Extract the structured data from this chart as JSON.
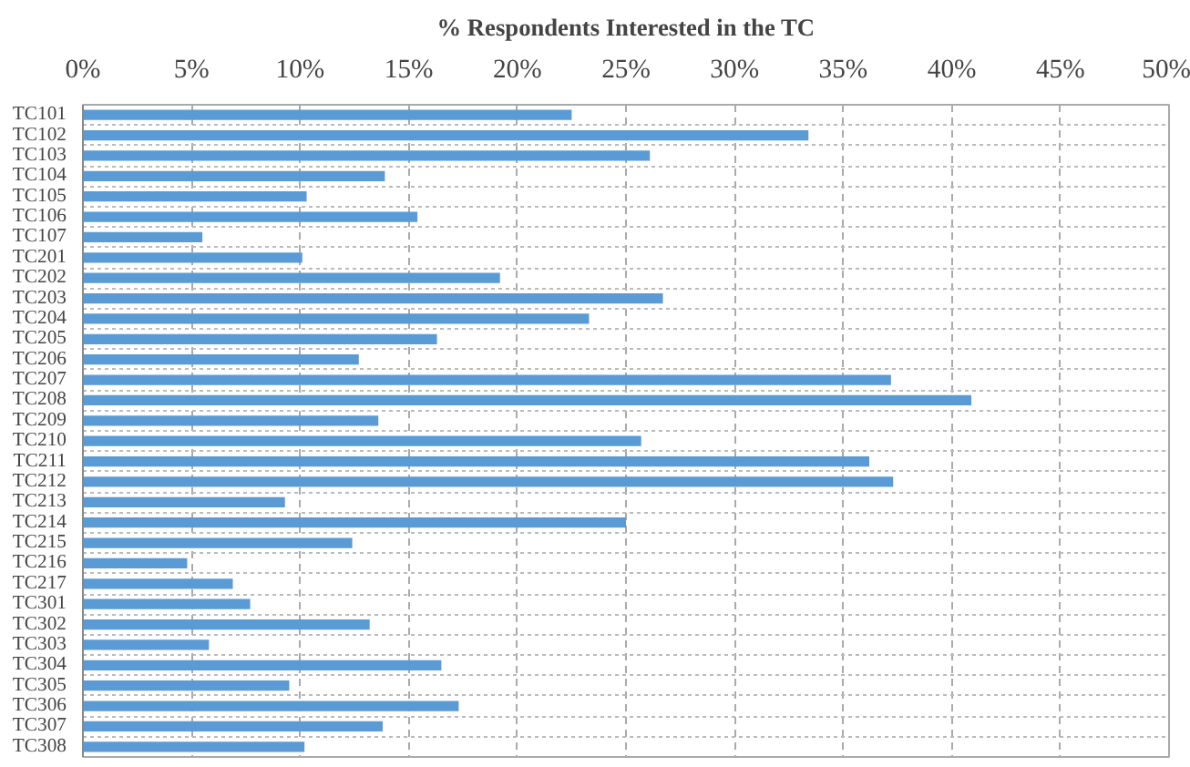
{
  "chart_data": {
    "type": "bar",
    "orientation": "horizontal",
    "title": "% Respondents Interested in the TC",
    "categories": [
      "TC101",
      "TC102",
      "TC103",
      "TC104",
      "TC105",
      "TC106",
      "TC107",
      "TC201",
      "TC202",
      "TC203",
      "TC204",
      "TC205",
      "TC206",
      "TC207",
      "TC208",
      "TC209",
      "TC210",
      "TC211",
      "TC212",
      "TC213",
      "TC214",
      "TC215",
      "TC216",
      "TC217",
      "TC301",
      "TC302",
      "TC303",
      "TC304",
      "TC305",
      "TC306",
      "TC307",
      "TC308"
    ],
    "values": [
      22.5,
      33.4,
      26.1,
      13.9,
      10.3,
      15.4,
      5.5,
      10.1,
      19.2,
      26.7,
      23.3,
      16.3,
      12.7,
      37.2,
      40.9,
      13.6,
      25.7,
      36.2,
      37.3,
      9.3,
      25.0,
      12.4,
      4.8,
      6.9,
      7.7,
      13.2,
      5.8,
      16.5,
      9.5,
      17.3,
      13.8,
      10.2
    ],
    "color": "#5b9bd5",
    "xlim": [
      0,
      50
    ],
    "xticks": [
      {
        "value": 0,
        "label": "0%"
      },
      {
        "value": 5,
        "label": "5%"
      },
      {
        "value": 10,
        "label": "10%"
      },
      {
        "value": 15,
        "label": "15%"
      },
      {
        "value": 20,
        "label": "20%"
      },
      {
        "value": 25,
        "label": "25%"
      },
      {
        "value": 30,
        "label": "30%"
      },
      {
        "value": 35,
        "label": "35%"
      },
      {
        "value": 40,
        "label": "40%"
      },
      {
        "value": 45,
        "label": "45%"
      },
      {
        "value": 50,
        "label": "50%"
      }
    ],
    "grid": true
  }
}
